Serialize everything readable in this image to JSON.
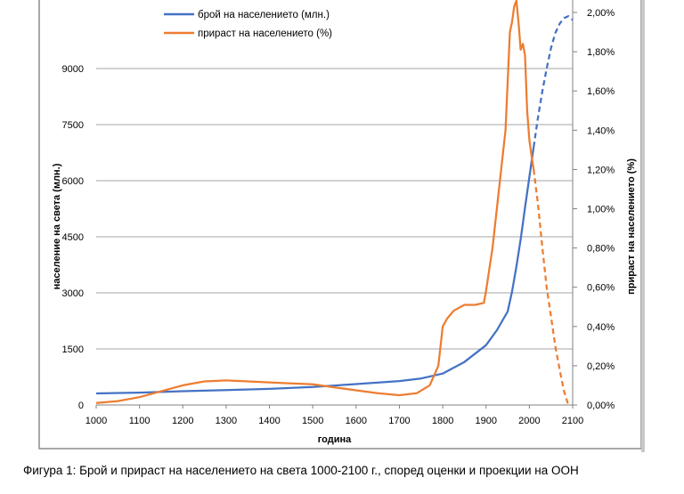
{
  "chart_data": {
    "type": "line",
    "title": "",
    "xlabel": "година",
    "ylabel_left": "население на света (млн.)",
    "ylabel_right": "прираст на населението (%)",
    "xlim": [
      1000,
      2100
    ],
    "x_ticks": [
      1000,
      1100,
      1200,
      1300,
      1400,
      1500,
      1600,
      1700,
      1800,
      1900,
      2000,
      2100
    ],
    "ylim_left": [
      0,
      10500
    ],
    "y_ticks_left": [
      "0",
      "1500",
      "3000",
      "4500",
      "6000",
      "7500",
      "9000"
    ],
    "y_tick_values_left": [
      0,
      1500,
      3000,
      4500,
      6000,
      7500,
      9000
    ],
    "ylim_right": [
      0,
      2.0
    ],
    "y_ticks_right": [
      "0,00%",
      "0,20%",
      "0,40%",
      "0,60%",
      "0,80%",
      "1,00%",
      "1,20%",
      "1,40%",
      "1,60%",
      "1,80%",
      "2,00%"
    ],
    "y_tick_values_right": [
      0,
      0.2,
      0.4,
      0.6,
      0.8,
      1.0,
      1.2,
      1.4,
      1.6,
      1.8,
      2.0
    ],
    "grid": "horizontal",
    "legend_position": "top-left",
    "series": [
      {
        "name": "брой на населението  (млн.)",
        "axis": "left",
        "color": "#4472C4",
        "points": [
          [
            1000,
            310
          ],
          [
            1100,
            330
          ],
          [
            1200,
            370
          ],
          [
            1300,
            400
          ],
          [
            1400,
            430
          ],
          [
            1500,
            480
          ],
          [
            1600,
            560
          ],
          [
            1700,
            640
          ],
          [
            1750,
            710
          ],
          [
            1800,
            840
          ],
          [
            1850,
            1150
          ],
          [
            1900,
            1600
          ],
          [
            1925,
            2000
          ],
          [
            1950,
            2500
          ],
          [
            1960,
            3030
          ],
          [
            1970,
            3700
          ],
          [
            1980,
            4430
          ],
          [
            1990,
            5280
          ],
          [
            2000,
            6100
          ],
          [
            2010,
            6900
          ]
        ],
        "projection": [
          [
            2010,
            6900
          ],
          [
            2020,
            7700
          ],
          [
            2030,
            8400
          ],
          [
            2040,
            9000
          ],
          [
            2050,
            9550
          ],
          [
            2060,
            9950
          ],
          [
            2070,
            10200
          ],
          [
            2080,
            10350
          ],
          [
            2090,
            10400
          ],
          [
            2100,
            10300
          ]
        ]
      },
      {
        "name": "прираст на населението (%)",
        "axis": "right",
        "color": "#ED7D31",
        "points": [
          [
            1000,
            0.01
          ],
          [
            1050,
            0.02
          ],
          [
            1100,
            0.04
          ],
          [
            1150,
            0.07
          ],
          [
            1200,
            0.1
          ],
          [
            1250,
            0.12
          ],
          [
            1300,
            0.125
          ],
          [
            1350,
            0.12
          ],
          [
            1400,
            0.115
          ],
          [
            1450,
            0.11
          ],
          [
            1500,
            0.105
          ],
          [
            1550,
            0.09
          ],
          [
            1600,
            0.075
          ],
          [
            1650,
            0.06
          ],
          [
            1700,
            0.05
          ],
          [
            1740,
            0.06
          ],
          [
            1770,
            0.1
          ],
          [
            1790,
            0.2
          ],
          [
            1800,
            0.4
          ],
          [
            1810,
            0.44
          ],
          [
            1825,
            0.48
          ],
          [
            1850,
            0.51
          ],
          [
            1875,
            0.51
          ],
          [
            1895,
            0.52
          ],
          [
            1900,
            0.58
          ],
          [
            1915,
            0.8
          ],
          [
            1930,
            1.1
          ],
          [
            1945,
            1.4
          ],
          [
            1955,
            1.9
          ],
          [
            1960,
            1.95
          ],
          [
            1965,
            2.03
          ],
          [
            1970,
            2.06
          ],
          [
            1975,
            1.95
          ],
          [
            1980,
            1.81
          ],
          [
            1985,
            1.84
          ],
          [
            1990,
            1.78
          ],
          [
            1995,
            1.5
          ],
          [
            2000,
            1.35
          ],
          [
            2005,
            1.27
          ],
          [
            2010,
            1.2
          ]
        ],
        "projection": [
          [
            2010,
            1.2
          ],
          [
            2020,
            1.02
          ],
          [
            2030,
            0.8
          ],
          [
            2040,
            0.6
          ],
          [
            2050,
            0.45
          ],
          [
            2060,
            0.3
          ],
          [
            2070,
            0.18
          ],
          [
            2080,
            0.07
          ],
          [
            2090,
            0.0
          ]
        ]
      }
    ]
  },
  "caption": "Фигура 1: Брой и прираст на населението на света 1000-2100 г., според оценки и проекции на ООН"
}
